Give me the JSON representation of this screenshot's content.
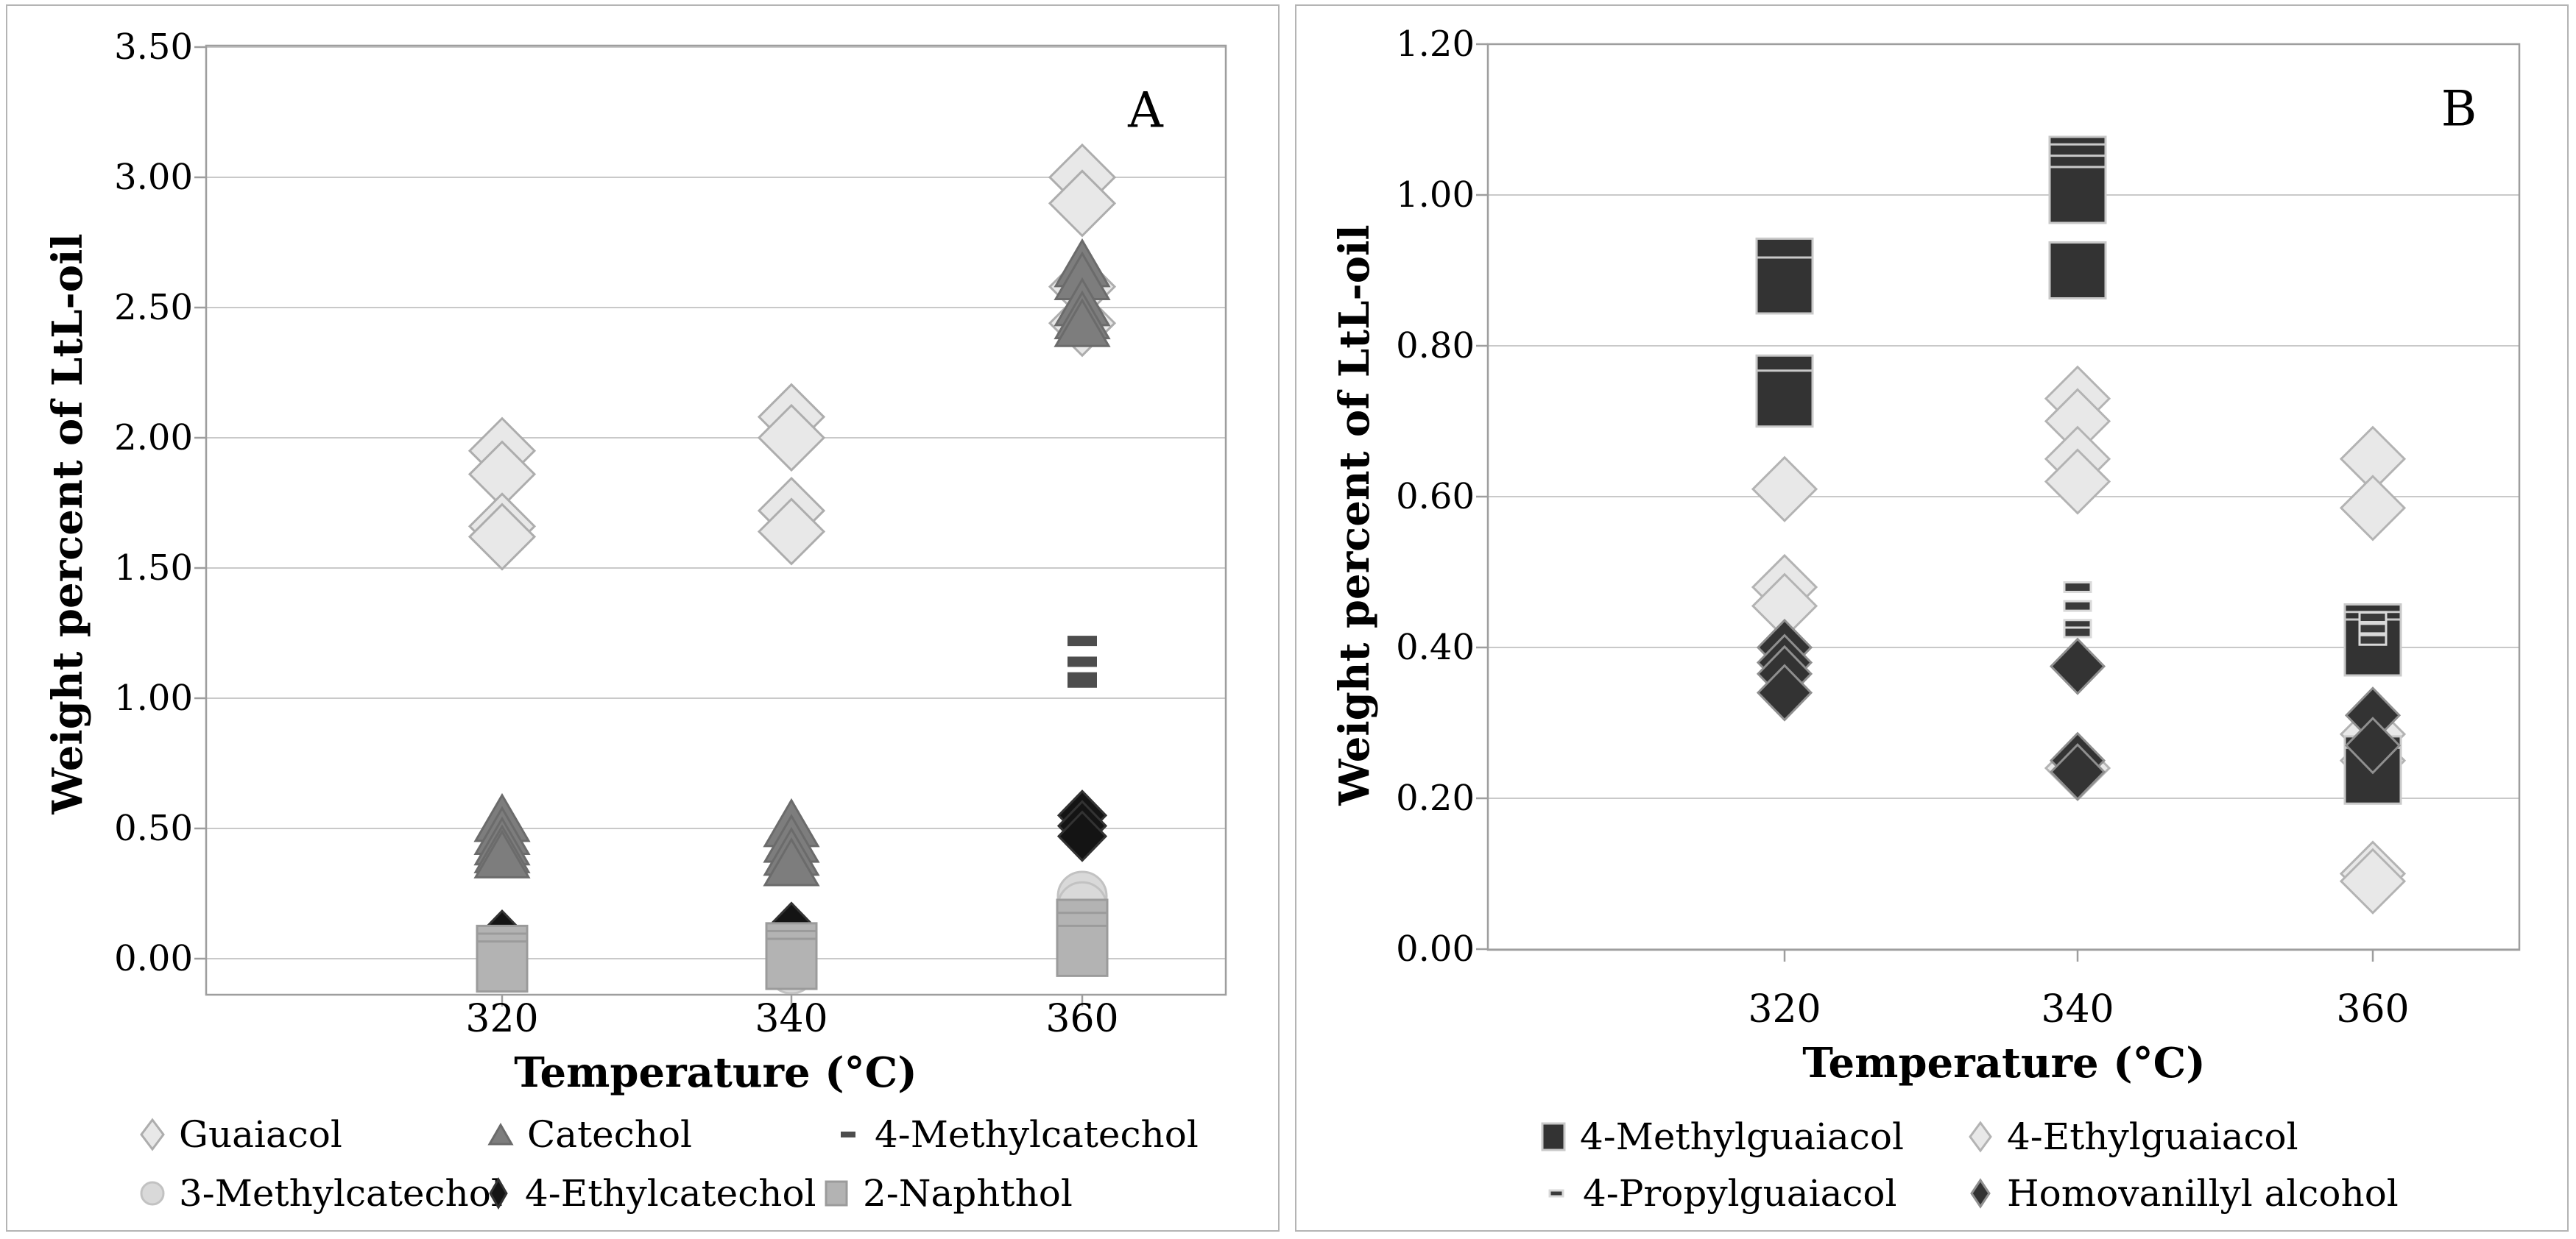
{
  "page": {
    "background": "#ffffff"
  },
  "colors": {
    "panel_border": "#b4b4b4",
    "plot_frame": "#9e9e9e",
    "gridline": "#c9c9c9",
    "text": "#000000"
  },
  "panels": [
    {
      "label": "A",
      "y_title": "Weight percent of LtL-oil",
      "x_title": "Temperature (°C)",
      "y_tick_labels": [
        "3.50",
        "3.00",
        "2.50",
        "2.00",
        "1.50",
        "1.00",
        "0.50",
        "0.00"
      ],
      "x_tick_labels": [
        "320",
        "340",
        "360"
      ],
      "legend_rows": [
        [
          "Guaiacol",
          "Catechol",
          "4-Methylcatechol"
        ],
        [
          "3-Methylcatechol",
          "4-Ethylcatechol",
          "2-Naphthol"
        ]
      ]
    },
    {
      "label": "B",
      "y_title": "Weight percent of LtL-oil",
      "x_title": "Temperature (°C)",
      "y_tick_labels": [
        "1.20",
        "1.00",
        "0.80",
        "0.60",
        "0.40",
        "0.20",
        "0.00"
      ],
      "x_tick_labels": [
        "320",
        "340",
        "360"
      ],
      "legend_rows": [
        [
          "4-Methylguaiacol",
          "4-Ethylguaiacol"
        ],
        [
          "4-Propylguaiacol",
          "Homovanillyl alcohol"
        ]
      ]
    }
  ],
  "chart_data": [
    {
      "type": "scatter",
      "title": "A",
      "xlabel": "Temperature (°C)",
      "ylabel": "Weight percent of LtL-oil",
      "x_categories": [
        320,
        340,
        360
      ],
      "ylim": [
        0.0,
        3.5
      ],
      "ytick_step": 0.5,
      "grid": true,
      "legend_position": "bottom",
      "series": [
        {
          "name": "Guaiacol",
          "marker": "diamond",
          "fill": "#e8e8e8",
          "stroke": "#adadad",
          "points": [
            [
              320,
              1.95
            ],
            [
              320,
              1.86
            ],
            [
              320,
              1.66
            ],
            [
              320,
              1.62
            ],
            [
              340,
              2.08
            ],
            [
              340,
              2.0
            ],
            [
              340,
              1.72
            ],
            [
              340,
              1.64
            ],
            [
              360,
              3.0
            ],
            [
              360,
              2.9
            ],
            [
              360,
              2.58
            ],
            [
              360,
              2.44
            ]
          ]
        },
        {
          "name": "Catechol",
          "marker": "triangle",
          "fill": "#7d7d7d",
          "stroke": "#6b6b6b",
          "points": [
            [
              320,
              0.54
            ],
            [
              320,
              0.49
            ],
            [
              320,
              0.45
            ],
            [
              320,
              0.42
            ],
            [
              320,
              0.4
            ],
            [
              340,
              0.52
            ],
            [
              340,
              0.46
            ],
            [
              340,
              0.41
            ],
            [
              340,
              0.37
            ],
            [
              360,
              2.67
            ],
            [
              360,
              2.62
            ],
            [
              360,
              2.52
            ],
            [
              360,
              2.47
            ],
            [
              360,
              2.44
            ]
          ]
        },
        {
          "name": "4-Methylcatechol",
          "marker": "dash",
          "fill": "#4d4d4d",
          "stroke": "none",
          "points": [
            [
              360,
              1.22
            ],
            [
              360,
              1.14
            ],
            [
              360,
              1.08
            ],
            [
              360,
              1.06
            ]
          ]
        },
        {
          "name": "3-Methylcatechol",
          "marker": "circle",
          "fill": "#d9d9d9",
          "stroke": "#c2c2c2",
          "points": [
            [
              340,
              -0.04
            ],
            [
              360,
              0.24
            ],
            [
              360,
              0.2
            ]
          ]
        },
        {
          "name": "4-Ethylcatechol",
          "marker": "diamond",
          "fill": "#141414",
          "stroke": "#333333",
          "points": [
            [
              320,
              0.09
            ],
            [
              340,
              0.12
            ],
            [
              360,
              0.55
            ],
            [
              360,
              0.51
            ],
            [
              360,
              0.47
            ]
          ]
        },
        {
          "name": "2-Naphthol",
          "marker": "square",
          "fill": "#b3b3b3",
          "stroke": "#9b9b9b",
          "points": [
            [
              320,
              0.03
            ],
            [
              320,
              0.0
            ],
            [
              320,
              -0.03
            ],
            [
              340,
              0.04
            ],
            [
              340,
              0.01
            ],
            [
              340,
              -0.02
            ],
            [
              360,
              0.13
            ],
            [
              360,
              0.08
            ],
            [
              360,
              0.03
            ]
          ]
        }
      ],
      "draw_order": [
        0,
        1,
        2,
        3,
        4,
        5
      ]
    },
    {
      "type": "scatter",
      "title": "B",
      "xlabel": "Temperature (°C)",
      "ylabel": "Weight percent of LtL-oil",
      "x_categories": [
        320,
        340,
        360
      ],
      "ylim": [
        0.0,
        1.2
      ],
      "ytick_step": 0.2,
      "grid": true,
      "legend_position": "bottom",
      "series": [
        {
          "name": "4-Methylguaiacol",
          "marker": "square",
          "fill": "#333333",
          "stroke": "#c9c9c9",
          "points": [
            [
              320,
              0.905
            ],
            [
              320,
              0.88
            ],
            [
              320,
              0.75
            ],
            [
              320,
              0.73
            ],
            [
              340,
              1.04
            ],
            [
              340,
              1.03
            ],
            [
              340,
              1.015
            ],
            [
              340,
              1.0
            ],
            [
              340,
              0.9
            ],
            [
              360,
              0.42
            ],
            [
              360,
              0.41
            ],
            [
              360,
              0.4
            ],
            [
              360,
              0.245
            ],
            [
              360,
              0.23
            ]
          ]
        },
        {
          "name": "4-Ethylguaiacol",
          "marker": "diamond",
          "fill": "#e8e8e8",
          "stroke": "#b3b3b3",
          "points": [
            [
              320,
              0.61
            ],
            [
              320,
              0.48
            ],
            [
              320,
              0.455
            ],
            [
              340,
              0.73
            ],
            [
              340,
              0.7
            ],
            [
              340,
              0.65
            ],
            [
              340,
              0.62
            ],
            [
              340,
              0.24
            ],
            [
              360,
              0.65
            ],
            [
              360,
              0.585
            ],
            [
              360,
              0.285
            ],
            [
              360,
              0.25
            ],
            [
              360,
              0.1
            ],
            [
              360,
              0.09
            ]
          ]
        },
        {
          "name": "4-Propylguaiacol",
          "marker": "dash",
          "fill": "#3a3a3a",
          "stroke": "#d9d9d9",
          "points": [
            [
              340,
              0.48
            ],
            [
              340,
              0.455
            ],
            [
              340,
              0.43
            ],
            [
              340,
              0.42
            ],
            [
              360,
              0.44
            ],
            [
              360,
              0.425
            ],
            [
              360,
              0.41
            ]
          ]
        },
        {
          "name": "Homovanillyl alcohol",
          "marker": "diamond",
          "fill": "#333333",
          "stroke": "#8f8f8f",
          "points": [
            [
              320,
              0.4
            ],
            [
              320,
              0.38
            ],
            [
              320,
              0.365
            ],
            [
              320,
              0.34
            ],
            [
              340,
              0.375
            ],
            [
              340,
              0.25
            ],
            [
              340,
              0.235
            ],
            [
              360,
              0.31
            ],
            [
              360,
              0.27
            ]
          ]
        }
      ],
      "draw_order": [
        1,
        0,
        2,
        3
      ]
    }
  ]
}
